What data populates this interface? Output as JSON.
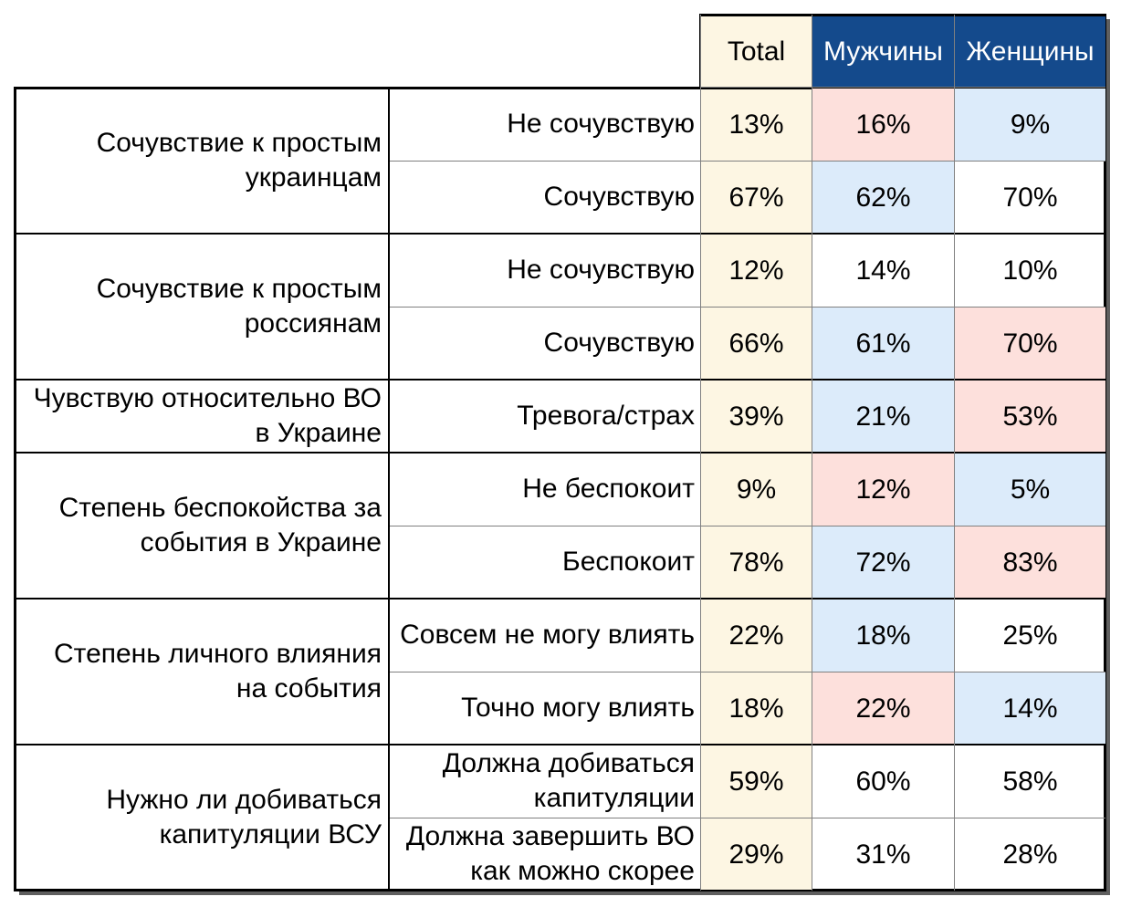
{
  "colors": {
    "total_fill": "#fdf6e3",
    "header_fill": "#144a8c",
    "header_text": "#ffffff",
    "high_fill": "#fde0dc",
    "low_fill": "#dcebfa",
    "none_fill": "#ffffff"
  },
  "chart_data": {
    "type": "table",
    "columns": [
      "Total",
      "Мужчины",
      "Женщины"
    ],
    "groups": [
      {
        "question": "Сочувствие к простым украинцам",
        "rows": [
          {
            "answer": "Не сочувствую",
            "values": [
              "13%",
              "16%",
              "9%"
            ],
            "highlight": [
              "none",
              "high",
              "low"
            ]
          },
          {
            "answer": "Сочувствую",
            "values": [
              "67%",
              "62%",
              "70%"
            ],
            "highlight": [
              "none",
              "low",
              "none"
            ]
          }
        ]
      },
      {
        "question": "Сочувствие к простым россиянам",
        "rows": [
          {
            "answer": "Не сочувствую",
            "values": [
              "12%",
              "14%",
              "10%"
            ],
            "highlight": [
              "none",
              "none",
              "none"
            ]
          },
          {
            "answer": "Сочувствую",
            "values": [
              "66%",
              "61%",
              "70%"
            ],
            "highlight": [
              "none",
              "low",
              "high"
            ]
          }
        ]
      },
      {
        "question": "Чувствую относительно ВО в Украине",
        "rows": [
          {
            "answer": "Тревога/страх",
            "values": [
              "39%",
              "21%",
              "53%"
            ],
            "highlight": [
              "none",
              "low",
              "high"
            ]
          }
        ]
      },
      {
        "question": "Степень беспокойства за события в Украине",
        "rows": [
          {
            "answer": "Не беспокоит",
            "values": [
              "9%",
              "12%",
              "5%"
            ],
            "highlight": [
              "none",
              "high",
              "low"
            ]
          },
          {
            "answer": "Беспокоит",
            "values": [
              "78%",
              "72%",
              "83%"
            ],
            "highlight": [
              "none",
              "low",
              "high"
            ]
          }
        ]
      },
      {
        "question": "Степень личного влияния на события",
        "rows": [
          {
            "answer": "Совсем не могу влиять",
            "values": [
              "22%",
              "18%",
              "25%"
            ],
            "highlight": [
              "none",
              "low",
              "none"
            ]
          },
          {
            "answer": "Точно могу влиять",
            "values": [
              "18%",
              "22%",
              "14%"
            ],
            "highlight": [
              "none",
              "high",
              "low"
            ]
          }
        ]
      },
      {
        "question": "Нужно ли добиваться капитуляции ВСУ",
        "rows": [
          {
            "answer": "Должна добиваться капитуляции",
            "values": [
              "59%",
              "60%",
              "58%"
            ],
            "highlight": [
              "none",
              "none",
              "none"
            ]
          },
          {
            "answer": "Должна завершить ВО как можно скорее",
            "values": [
              "29%",
              "31%",
              "28%"
            ],
            "highlight": [
              "none",
              "none",
              "none"
            ]
          }
        ]
      }
    ]
  }
}
